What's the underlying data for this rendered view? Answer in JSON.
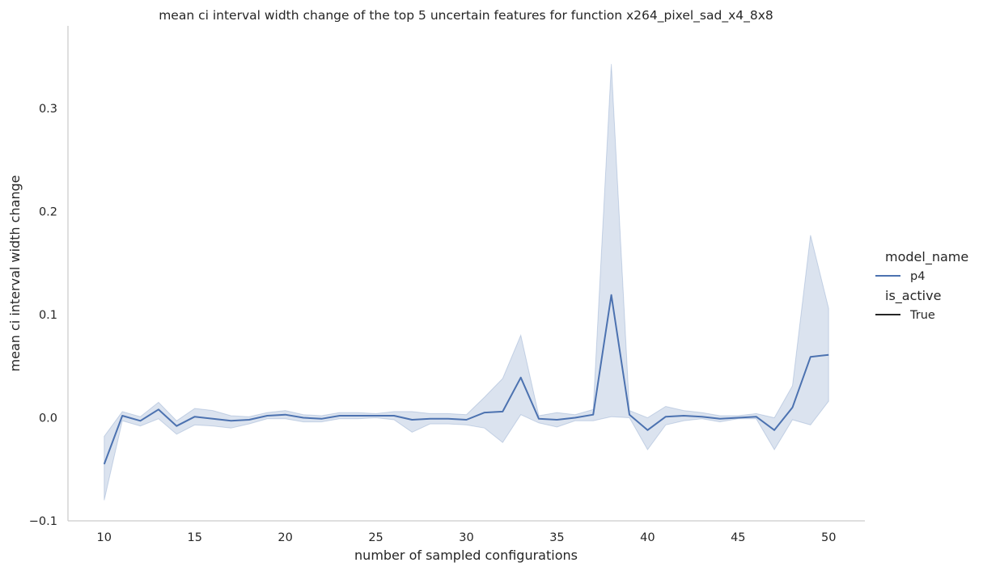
{
  "chart_data": {
    "type": "line",
    "title": "mean ci interval width change of the top 5 uncertain features for function x264_pixel_sad_x4_8x8",
    "xlabel": "number of sampled configurations",
    "ylabel": "mean ci interval width change",
    "xlim": [
      8,
      52
    ],
    "ylim": [
      -0.1,
      0.38
    ],
    "xticks": [
      10,
      15,
      20,
      25,
      30,
      35,
      40,
      45,
      50
    ],
    "yticks": [
      -0.1,
      0.0,
      0.1,
      0.2,
      0.3
    ],
    "ytick_labels": [
      "−0.1",
      "0.0",
      "0.1",
      "0.2",
      "0.3"
    ],
    "grid": false,
    "legend_placement": "right",
    "legend": {
      "title1": "model_name",
      "item1": "p4",
      "title2": "is_active",
      "item2": "True"
    },
    "colors": {
      "line": "#4c72b0",
      "band": "#4c72b0",
      "axis": "#cccccc",
      "style_line": "#262626"
    },
    "series": [
      {
        "name": "p4",
        "x": [
          10,
          11,
          12,
          13,
          14,
          15,
          16,
          17,
          18,
          19,
          20,
          21,
          22,
          23,
          24,
          25,
          26,
          27,
          28,
          29,
          30,
          31,
          32,
          33,
          34,
          35,
          36,
          37,
          38,
          39,
          40,
          41,
          42,
          43,
          44,
          45,
          46,
          47,
          48,
          49,
          50
        ],
        "values": [
          -0.045,
          0.002,
          -0.003,
          0.008,
          -0.008,
          0.001,
          -0.001,
          -0.003,
          -0.002,
          0.002,
          0.003,
          0.0,
          -0.001,
          0.002,
          0.002,
          0.002,
          0.002,
          -0.002,
          -0.001,
          -0.001,
          -0.002,
          0.005,
          0.006,
          0.039,
          -0.001,
          -0.002,
          0.0,
          0.003,
          0.119,
          0.003,
          -0.012,
          0.001,
          0.002,
          0.001,
          -0.001,
          0.0,
          0.001,
          -0.012,
          0.01,
          0.059,
          0.061
        ],
        "ci_low": [
          -0.08,
          -0.003,
          -0.008,
          -0.001,
          -0.016,
          -0.007,
          -0.008,
          -0.01,
          -0.006,
          -0.001,
          -0.001,
          -0.004,
          -0.004,
          -0.001,
          -0.001,
          0.0,
          -0.002,
          -0.014,
          -0.006,
          -0.006,
          -0.007,
          -0.01,
          -0.024,
          0.003,
          -0.005,
          -0.009,
          -0.003,
          -0.003,
          0.001,
          0.0,
          -0.031,
          -0.007,
          -0.003,
          -0.001,
          -0.004,
          -0.001,
          -0.001,
          -0.031,
          -0.002,
          -0.007,
          0.016
        ],
        "ci_high": [
          -0.018,
          0.006,
          0.001,
          0.015,
          -0.003,
          0.009,
          0.007,
          0.002,
          0.001,
          0.005,
          0.007,
          0.003,
          0.002,
          0.005,
          0.005,
          0.004,
          0.006,
          0.006,
          0.004,
          0.004,
          0.003,
          0.02,
          0.038,
          0.08,
          0.002,
          0.005,
          0.003,
          0.008,
          0.343,
          0.007,
          0.0,
          0.011,
          0.007,
          0.005,
          0.002,
          0.002,
          0.004,
          0.0,
          0.031,
          0.177,
          0.106
        ]
      }
    ]
  }
}
